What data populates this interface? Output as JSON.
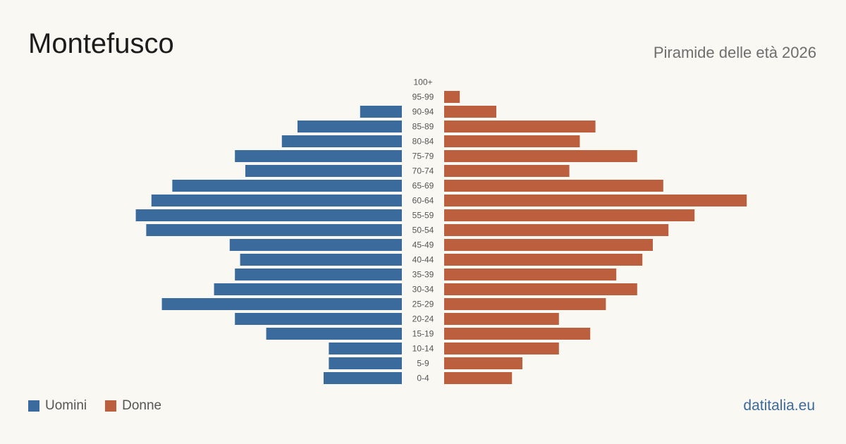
{
  "header": {
    "title": "Montefusco",
    "subtitle": "Piramide delle età 2026"
  },
  "legend": {
    "male_label": "Uomini",
    "female_label": "Donne"
  },
  "footer": {
    "brand": "datitalia.eu"
  },
  "colors": {
    "male": "#3b6a9c",
    "female": "#bc5f3f",
    "label": "#555555"
  },
  "chart_data": {
    "type": "bar",
    "orientation": "horizontal-pyramid",
    "categories": [
      "100+",
      "95-99",
      "90-94",
      "85-89",
      "80-84",
      "75-79",
      "70-74",
      "65-69",
      "60-64",
      "55-59",
      "50-54",
      "45-49",
      "40-44",
      "35-39",
      "30-34",
      "25-29",
      "20-24",
      "15-19",
      "10-14",
      "5-9",
      "0-4"
    ],
    "series": [
      {
        "name": "Uomini",
        "values": [
          0,
          0,
          8,
          20,
          23,
          32,
          30,
          44,
          48,
          51,
          49,
          33,
          31,
          32,
          36,
          46,
          32,
          26,
          14,
          14,
          15
        ]
      },
      {
        "name": "Donne",
        "values": [
          0,
          3,
          10,
          29,
          26,
          37,
          24,
          42,
          58,
          48,
          43,
          40,
          38,
          33,
          37,
          31,
          22,
          28,
          22,
          15,
          13
        ]
      }
    ],
    "xlim": [
      0,
      60
    ],
    "legend_position": "bottom-left"
  }
}
